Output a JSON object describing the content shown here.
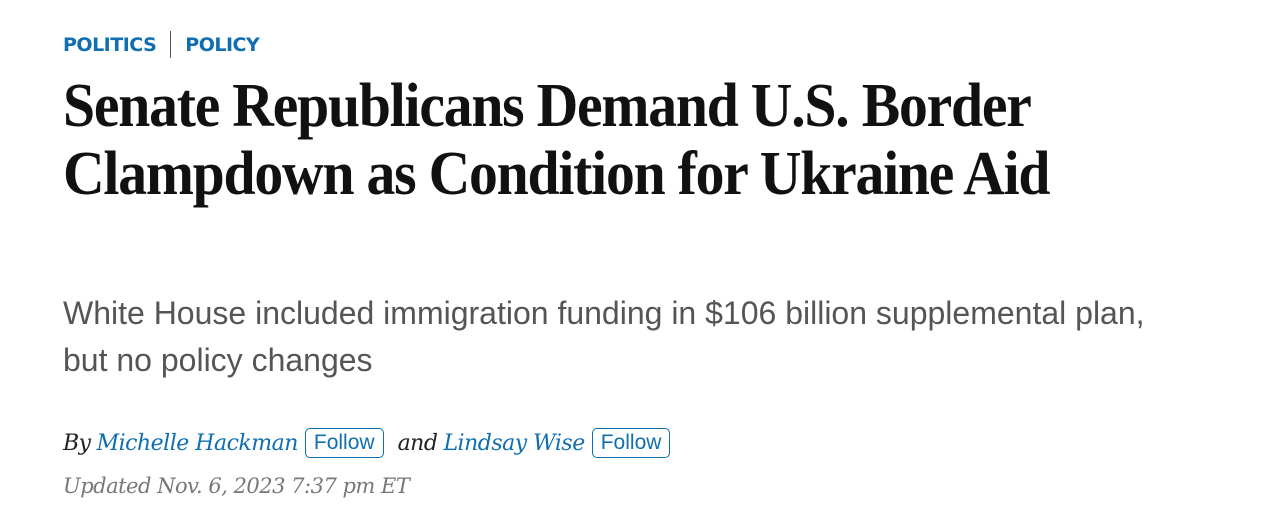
{
  "categories": [
    "POLITICS",
    "POLICY"
  ],
  "headline": "Senate Republicans Demand U.S. Border Clampdown as Condition for Ukraine Aid",
  "dek": "White House included immigration funding in $106 billion supplemental plan, but no policy changes",
  "byline": {
    "prefix": "By",
    "authors": [
      {
        "name": "Michelle Hackman",
        "follow_label": "Follow"
      },
      {
        "name": "Lindsay Wise",
        "follow_label": "Follow"
      }
    ],
    "conjunction": "and"
  },
  "updated": "Updated Nov. 6, 2023 7:37 pm ET",
  "colors": {
    "link": "#0f6fb0",
    "headline": "#111111",
    "dek": "#555555"
  }
}
